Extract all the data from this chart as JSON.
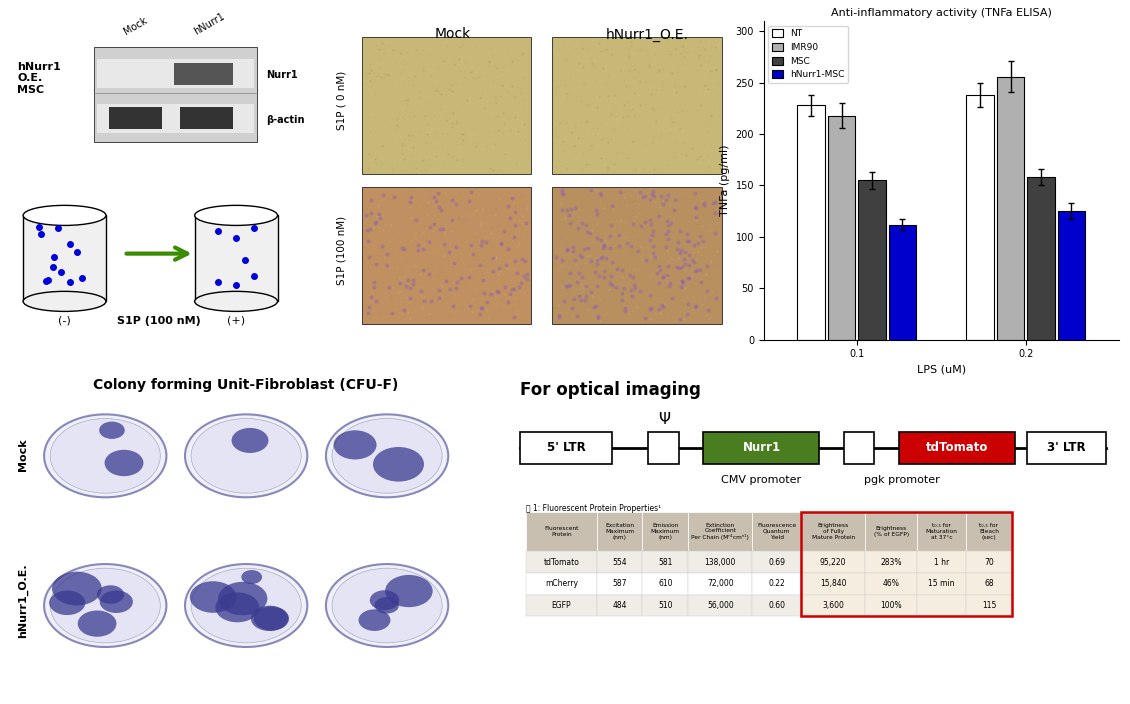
{
  "bar_chart": {
    "title": "Anti-inflammatory activity (TNFa ELISA)",
    "groups": [
      "0.1",
      "0.2"
    ],
    "xlabel": "LPS (uM)",
    "ylabel": "TNFa (pg/ml)",
    "series": {
      "NT": {
        "color": "#ffffff",
        "edgecolor": "#000000",
        "values": [
          228,
          238
        ],
        "errors": [
          10,
          12
        ]
      },
      "IMR90": {
        "color": "#b0b0b0",
        "edgecolor": "#000000",
        "values": [
          218,
          256
        ],
        "errors": [
          12,
          15
        ]
      },
      "MSC": {
        "color": "#404040",
        "edgecolor": "#000000",
        "values": [
          155,
          158
        ],
        "errors": [
          8,
          8
        ]
      },
      "hNurr1-MSC": {
        "color": "#0000cc",
        "edgecolor": "#000000",
        "values": [
          112,
          125
        ],
        "errors": [
          5,
          8
        ]
      }
    },
    "ylim": [
      0,
      310
    ],
    "yticks": [
      0,
      50,
      100,
      150,
      200,
      250,
      300
    ]
  }
}
